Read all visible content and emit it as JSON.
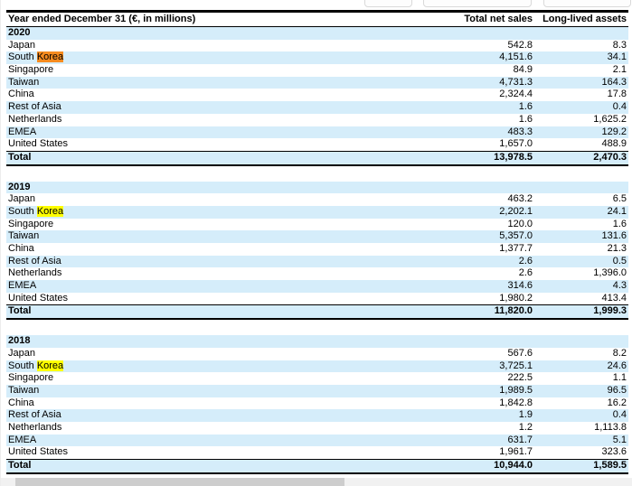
{
  "document": {
    "header": {
      "row_label": "Year ended December 31 (€, in millions)",
      "col_net_sales": "Total net sales",
      "col_assets": "Long-lived assets"
    },
    "total_label": "Total",
    "search_term": "Korea",
    "sections": [
      {
        "year": "2020",
        "rows": [
          {
            "name": "Japan",
            "net_sales": "542.8",
            "assets": "8.3"
          },
          {
            "name": "South Korea",
            "net_sales": "4,151.6",
            "assets": "34.1",
            "highlight": {
              "text": "Korea",
              "type": "active"
            }
          },
          {
            "name": "Singapore",
            "net_sales": "84.9",
            "assets": "2.1"
          },
          {
            "name": "Taiwan",
            "net_sales": "4,731.3",
            "assets": "164.3"
          },
          {
            "name": "China",
            "net_sales": "2,324.4",
            "assets": "17.8"
          },
          {
            "name": "Rest of Asia",
            "net_sales": "1.6",
            "assets": "0.4"
          },
          {
            "name": "Netherlands",
            "net_sales": "1.6",
            "assets": "1,625.2"
          },
          {
            "name": "EMEA",
            "net_sales": "483.3",
            "assets": "129.2"
          },
          {
            "name": "United States",
            "net_sales": "1,657.0",
            "assets": "488.9"
          }
        ],
        "total": {
          "net_sales": "13,978.5",
          "assets": "2,470.3"
        }
      },
      {
        "year": "2019",
        "rows": [
          {
            "name": "Japan",
            "net_sales": "463.2",
            "assets": "6.5"
          },
          {
            "name": "South Korea",
            "net_sales": "2,202.1",
            "assets": "24.1",
            "highlight": {
              "text": "Korea",
              "type": "match"
            }
          },
          {
            "name": "Singapore",
            "net_sales": "120.0",
            "assets": "1.6"
          },
          {
            "name": "Taiwan",
            "net_sales": "5,357.0",
            "assets": "131.6"
          },
          {
            "name": "China",
            "net_sales": "1,377.7",
            "assets": "21.3"
          },
          {
            "name": "Rest of Asia",
            "net_sales": "2.6",
            "assets": "0.5"
          },
          {
            "name": "Netherlands",
            "net_sales": "2.6",
            "assets": "1,396.0"
          },
          {
            "name": "EMEA",
            "net_sales": "314.6",
            "assets": "4.3"
          },
          {
            "name": "United States",
            "net_sales": "1,980.2",
            "assets": "413.4"
          }
        ],
        "total": {
          "net_sales": "11,820.0",
          "assets": "1,999.3"
        }
      },
      {
        "year": "2018",
        "rows": [
          {
            "name": "Japan",
            "net_sales": "567.6",
            "assets": "8.2"
          },
          {
            "name": "South Korea",
            "net_sales": "3,725.1",
            "assets": "24.6",
            "highlight": {
              "text": "Korea",
              "type": "match"
            }
          },
          {
            "name": "Singapore",
            "net_sales": "222.5",
            "assets": "1.1"
          },
          {
            "name": "Taiwan",
            "net_sales": "1,989.5",
            "assets": "96.5"
          },
          {
            "name": "China",
            "net_sales": "1,842.8",
            "assets": "16.2"
          },
          {
            "name": "Rest of Asia",
            "net_sales": "1.9",
            "assets": "0.4"
          },
          {
            "name": "Netherlands",
            "net_sales": "1.2",
            "assets": "1,113.8"
          },
          {
            "name": "EMEA",
            "net_sales": "631.7",
            "assets": "5.1"
          },
          {
            "name": "United States",
            "net_sales": "1,961.7",
            "assets": "323.6"
          }
        ],
        "total": {
          "net_sales": "10,944.0",
          "assets": "1,589.5"
        }
      }
    ]
  },
  "colors": {
    "row_blue": "#d5edfa",
    "highlight_active": "#f68b1f",
    "highlight_match": "#ffff00",
    "scrollbar_track": "#f1f1f1",
    "scrollbar_thumb": "#cdcdcd",
    "button_border": "#d9d9d9"
  }
}
